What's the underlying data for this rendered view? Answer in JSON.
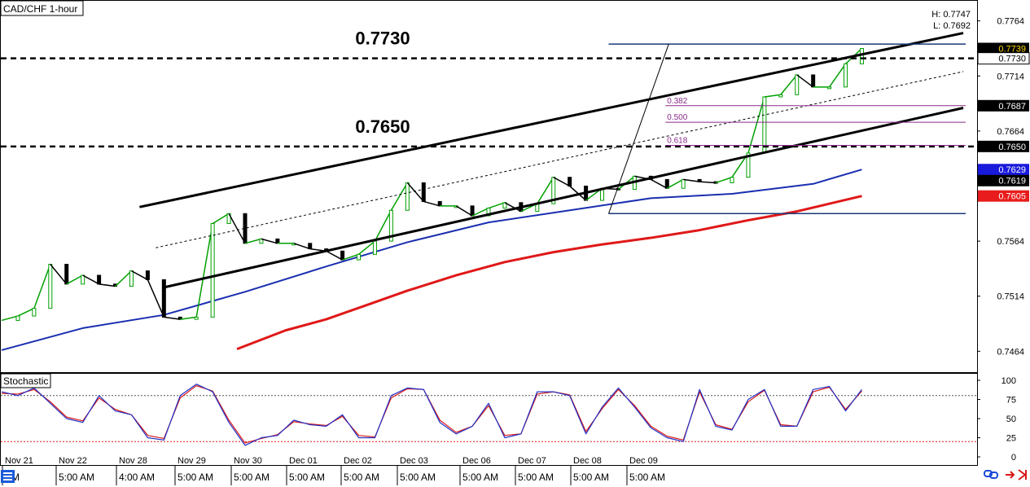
{
  "window": {
    "symbol_label": "CAD/CHF 1-hour",
    "high_label": "H: 0.7747",
    "low_label": "L: 0.7692"
  },
  "colors": {
    "price_axis_bg": "#ffffff",
    "bull": "#00a000",
    "bear": "#000000",
    "ma_fast": "#1a2fb0",
    "ma_slow": "#e01818",
    "fib_line": "#8a2a8a",
    "fib_range": "#1a3a7a",
    "stoch_k": "#2232c8",
    "stoch_d": "#d81818",
    "accent_tag_blue": "#1a1adc",
    "accent_tag_red": "#e81c1c",
    "tag_current_bg": "#000000",
    "tag_current_fg": "#ffd800"
  },
  "annotations": [
    {
      "text": "0.7730",
      "price": 0.773
    },
    {
      "text": "0.7650",
      "price": 0.765
    }
  ],
  "fib_labels": [
    {
      "text": "0.382",
      "price": 0.7687
    },
    {
      "text": "0.500",
      "price": 0.7672
    },
    {
      "text": "0.618",
      "price": 0.7651
    }
  ],
  "price_tags": [
    {
      "text": "0.7739",
      "price": 0.7739,
      "style": "current"
    },
    {
      "text": "0.7730",
      "price": 0.773,
      "style": "plain"
    },
    {
      "text": "0.7687",
      "price": 0.7687,
      "style": "black"
    },
    {
      "text": "0.7650",
      "price": 0.765,
      "style": "black"
    },
    {
      "text": "0.7629",
      "price": 0.7629,
      "style": "blue"
    },
    {
      "text": "0.7619",
      "price": 0.7619,
      "style": "black"
    },
    {
      "text": "0.7605",
      "price": 0.7605,
      "style": "red"
    }
  ],
  "stochastic": {
    "label": "Stochastic",
    "levels": [
      80,
      20
    ],
    "ticks": [
      "100",
      "75",
      "50",
      "25",
      "0"
    ]
  },
  "time_axis": {
    "dates": [
      "Nov 21",
      "Nov 22",
      "Nov 28",
      "Nov 29",
      "Nov 30",
      "Dec 01",
      "Dec 02",
      "Dec 03",
      "Dec 06",
      "Dec 07",
      "Dec 08",
      "Dec 09"
    ],
    "times": [
      "AM",
      "5:00 AM",
      "4:00 AM",
      "5:00 AM",
      "5:00 AM",
      "5:00 AM",
      "5:00 AM",
      "5:00 AM",
      "5:00 AM",
      "5:00 AM",
      "5:00 AM",
      "5:00 AM"
    ]
  },
  "chart_data": {
    "type": "line",
    "title": "CAD/CHF 1-hour",
    "ylim": [
      0.7445,
      0.7783
    ],
    "price_ticks": [
      "0.7764",
      "0.7714",
      "0.7664",
      "0.7564",
      "0.7514",
      "0.7464"
    ],
    "price_tick_values": [
      0.7764,
      0.7714,
      0.7664,
      0.7564,
      0.7514,
      0.7464
    ],
    "series": [
      {
        "kind": "price",
        "x": [
          0,
          20,
          40,
          60,
          80,
          100,
          120,
          140,
          160,
          180,
          200,
          220,
          240,
          260,
          280,
          300,
          320,
          340,
          360,
          380,
          400,
          420,
          440,
          460,
          480,
          500,
          520,
          540,
          560,
          580,
          600,
          620,
          640,
          660,
          680,
          700,
          720,
          740,
          760,
          780,
          800,
          820,
          840,
          860,
          880,
          900,
          920,
          940,
          960,
          980,
          1000,
          1020,
          1040,
          1060
        ],
        "values": [
          0.7492,
          0.7496,
          0.7503,
          0.7543,
          0.7525,
          0.7533,
          0.7525,
          0.7523,
          0.7537,
          0.7529,
          0.7495,
          0.7493,
          0.7495,
          0.758,
          0.7589,
          0.7562,
          0.7566,
          0.7562,
          0.7562,
          0.7557,
          0.7555,
          0.7547,
          0.7552,
          0.7564,
          0.7592,
          0.7617,
          0.76,
          0.7596,
          0.7596,
          0.7587,
          0.7594,
          0.7599,
          0.7591,
          0.7598,
          0.7622,
          0.7614,
          0.7601,
          0.7612,
          0.7611,
          0.7623,
          0.762,
          0.7612,
          0.762,
          0.7618,
          0.7617,
          0.7622,
          0.7644,
          0.7695,
          0.7697,
          0.7715,
          0.7704,
          0.7704,
          0.7725,
          0.7739
        ]
      },
      {
        "kind": "ma_fast",
        "x": [
          0,
          100,
          200,
          300,
          400,
          500,
          600,
          700,
          800,
          900,
          1000,
          1060
        ],
        "values": [
          0.7465,
          0.7485,
          0.7497,
          0.7518,
          0.7541,
          0.7563,
          0.7581,
          0.7592,
          0.7603,
          0.7607,
          0.7616,
          0.7629
        ]
      },
      {
        "kind": "ma_slow",
        "x": [
          290,
          350,
          400,
          450,
          500,
          560,
          620,
          680,
          740,
          800,
          860,
          920,
          980,
          1060
        ],
        "values": [
          0.7466,
          0.7483,
          0.7493,
          0.7506,
          0.7519,
          0.7533,
          0.7545,
          0.7554,
          0.7561,
          0.7567,
          0.7574,
          0.7583,
          0.7591,
          0.7605
        ]
      },
      {
        "kind": "stoch_k",
        "x": [
          0,
          20,
          40,
          60,
          80,
          100,
          120,
          140,
          160,
          180,
          200,
          220,
          240,
          260,
          280,
          300,
          320,
          340,
          360,
          380,
          400,
          420,
          440,
          460,
          480,
          500,
          520,
          540,
          560,
          580,
          600,
          620,
          640,
          660,
          680,
          700,
          720,
          740,
          760,
          780,
          800,
          820,
          840,
          860,
          880,
          900,
          920,
          940,
          960,
          980,
          1000,
          1020,
          1040,
          1060
        ],
        "values": [
          85,
          80,
          90,
          70,
          50,
          45,
          80,
          60,
          55,
          25,
          22,
          80,
          95,
          85,
          45,
          15,
          25,
          28,
          48,
          42,
          40,
          55,
          25,
          25,
          80,
          90,
          88,
          45,
          30,
          40,
          70,
          25,
          30,
          85,
          85,
          80,
          30,
          65,
          90,
          65,
          38,
          25,
          20,
          88,
          40,
          35,
          75,
          88,
          40,
          40,
          88,
          92,
          60,
          88
        ]
      },
      {
        "kind": "stoch_d",
        "x": [
          0,
          20,
          40,
          60,
          80,
          100,
          120,
          140,
          160,
          180,
          200,
          220,
          240,
          260,
          280,
          300,
          320,
          340,
          360,
          380,
          400,
          420,
          440,
          460,
          480,
          500,
          520,
          540,
          560,
          580,
          600,
          620,
          640,
          660,
          680,
          700,
          720,
          740,
          760,
          780,
          800,
          820,
          840,
          860,
          880,
          900,
          920,
          940,
          960,
          980,
          1000,
          1020,
          1040,
          1060
        ],
        "values": [
          83,
          82,
          88,
          72,
          52,
          47,
          77,
          62,
          55,
          28,
          24,
          77,
          93,
          86,
          48,
          18,
          24,
          29,
          46,
          43,
          41,
          53,
          28,
          26,
          77,
          89,
          88,
          48,
          32,
          40,
          67,
          28,
          30,
          82,
          85,
          81,
          33,
          63,
          88,
          67,
          40,
          27,
          22,
          85,
          42,
          36,
          72,
          87,
          42,
          40,
          85,
          91,
          62,
          86
        ]
      }
    ]
  }
}
